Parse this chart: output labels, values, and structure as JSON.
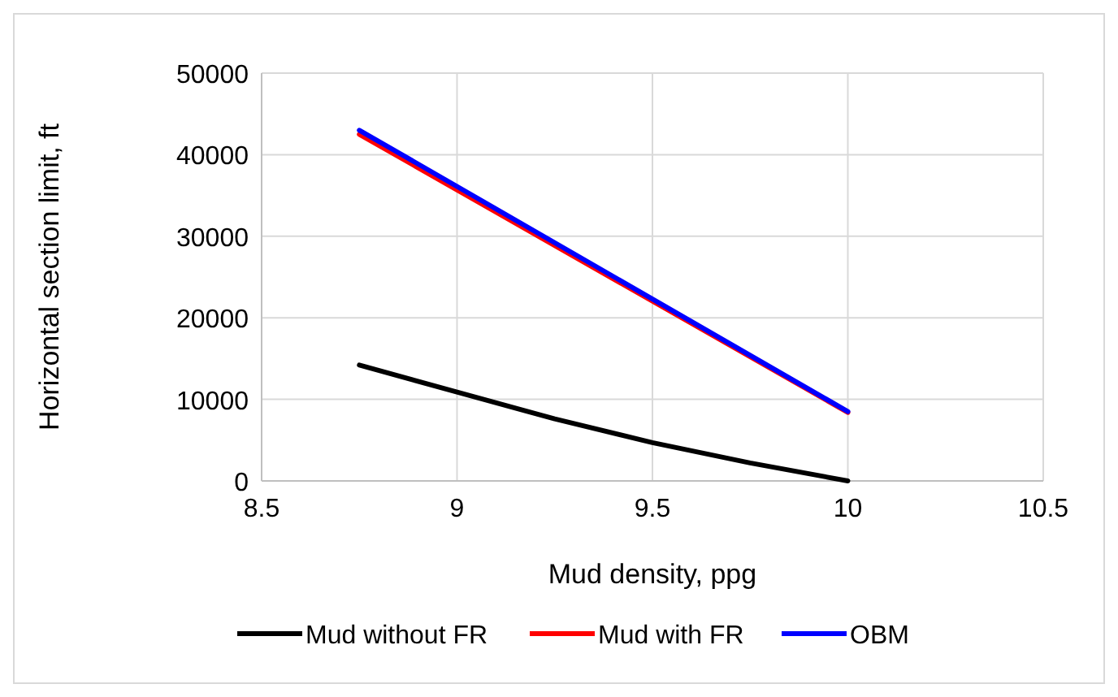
{
  "chart_data": {
    "type": "line",
    "xlabel": "Mud density, ppg",
    "ylabel": "Horizontal section limit, ft",
    "xlim": [
      8.5,
      10.5
    ],
    "xticks": [
      8.5,
      9,
      9.5,
      10,
      10.5
    ],
    "ylim": [
      0,
      50000
    ],
    "yticks": [
      0,
      10000,
      20000,
      30000,
      40000,
      50000
    ],
    "grid": true,
    "legend": "bottom",
    "marker": "none",
    "line_style": "solid",
    "series": [
      {
        "name": "Mud without FR",
        "color": "#000000",
        "x": [
          8.75,
          9,
          9.25,
          9.5,
          9.75,
          10
        ],
        "values": [
          14200,
          10900,
          7600,
          4700,
          2200,
          0
        ]
      },
      {
        "name": "Mud with FR",
        "color": "#ff0000",
        "x": [
          8.75,
          10
        ],
        "values": [
          42500,
          8400
        ]
      },
      {
        "name": "OBM",
        "color": "#0000ff",
        "x": [
          8.75,
          10
        ],
        "values": [
          43000,
          8500
        ]
      }
    ]
  }
}
